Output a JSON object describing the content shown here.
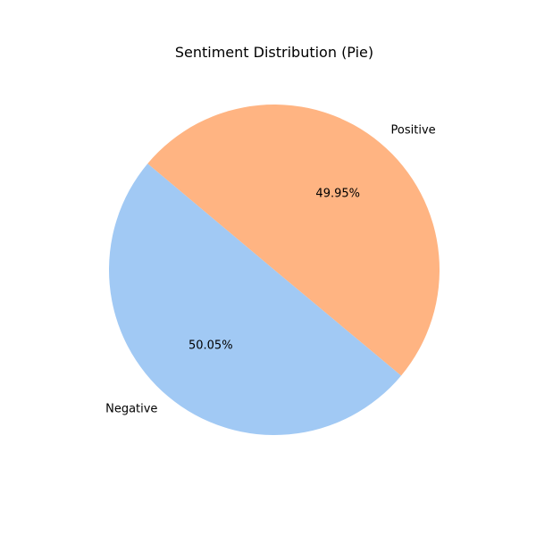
{
  "chart_data": {
    "type": "pie",
    "title": "Sentiment Distribution (Pie)",
    "start_angle_degrees": 140,
    "direction": "counterclockwise",
    "slices": [
      {
        "label": "Negative",
        "value": 50.05,
        "percent_label": "50.05%",
        "color": "#a1c9f4"
      },
      {
        "label": "Positive",
        "value": 49.95,
        "percent_label": "49.95%",
        "color": "#ffb482"
      }
    ]
  }
}
